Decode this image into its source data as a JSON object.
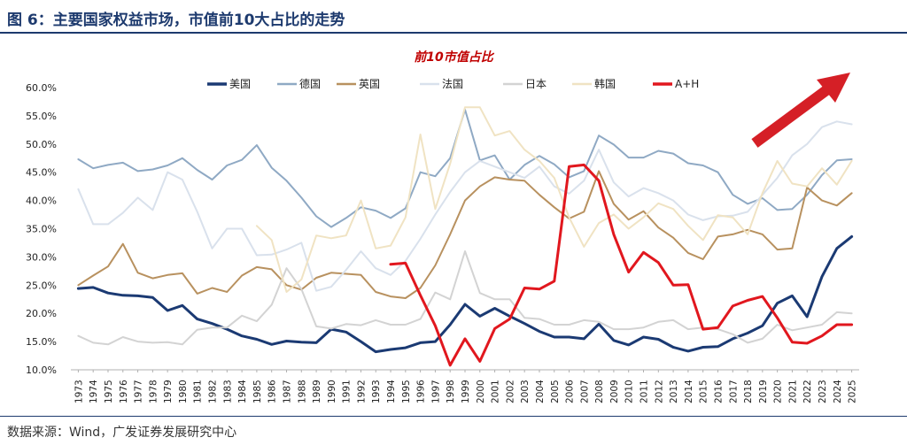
{
  "figure": {
    "title": "图 6：主要国家权益市场，市值前10大占比的走势",
    "source": "数据来源：Wind，广发证券发展研究中心"
  },
  "chart_data": {
    "type": "line",
    "title": "前10市值占比",
    "xlabel": "",
    "ylabel": "",
    "ylim": [
      0.1,
      0.6
    ],
    "yticks": [
      "10.0%",
      "15.0%",
      "20.0%",
      "25.0%",
      "30.0%",
      "35.0%",
      "40.0%",
      "45.0%",
      "50.0%",
      "55.0%",
      "60.0%"
    ],
    "grid": false,
    "legend_position": "top",
    "annotation": "red upward arrow (trend rising)",
    "x": [
      1973,
      1974,
      1975,
      1976,
      1977,
      1978,
      1979,
      1980,
      1981,
      1982,
      1983,
      1984,
      1985,
      1986,
      1987,
      1988,
      1989,
      1990,
      1991,
      1992,
      1993,
      1994,
      1995,
      1996,
      1997,
      1998,
      1999,
      2000,
      2001,
      2002,
      2003,
      2004,
      2005,
      2006,
      2007,
      2008,
      2009,
      2010,
      2011,
      2012,
      2013,
      2014,
      2015,
      2016,
      2017,
      2018,
      2019,
      2020,
      2021,
      2022,
      2023,
      2024,
      2025
    ],
    "series": [
      {
        "name": "美国",
        "color": "#1b3a73",
        "width": 3,
        "values": [
          0.244,
          0.246,
          0.236,
          0.232,
          0.231,
          0.228,
          0.205,
          0.214,
          0.19,
          0.182,
          0.172,
          0.16,
          0.154,
          0.145,
          0.151,
          0.149,
          0.148,
          0.172,
          0.167,
          0.15,
          0.132,
          0.136,
          0.139,
          0.148,
          0.15,
          0.18,
          0.216,
          0.195,
          0.209,
          0.195,
          0.182,
          0.168,
          0.158,
          0.158,
          0.155,
          0.181,
          0.152,
          0.144,
          0.158,
          0.154,
          0.14,
          0.133,
          0.14,
          0.141,
          0.155,
          0.165,
          0.178,
          0.218,
          0.231,
          0.194,
          0.265,
          0.315,
          0.336
        ]
      },
      {
        "name": "德国",
        "color": "#8fa9c4",
        "width": 2,
        "values": [
          0.473,
          0.457,
          0.463,
          0.467,
          0.452,
          0.455,
          0.462,
          0.475,
          0.454,
          0.437,
          0.462,
          0.472,
          0.498,
          0.458,
          0.435,
          0.405,
          0.372,
          0.353,
          0.369,
          0.388,
          0.382,
          0.369,
          0.386,
          0.45,
          0.443,
          0.475,
          0.561,
          0.471,
          0.48,
          0.437,
          0.463,
          0.479,
          0.464,
          0.441,
          0.452,
          0.515,
          0.499,
          0.476,
          0.476,
          0.488,
          0.483,
          0.466,
          0.462,
          0.45,
          0.41,
          0.394,
          0.404,
          0.383,
          0.385,
          0.41,
          0.445,
          0.471,
          0.473
        ]
      },
      {
        "name": "英国",
        "color": "#b8915f",
        "width": 2,
        "values": [
          0.25,
          0.267,
          0.283,
          0.323,
          0.272,
          0.262,
          0.268,
          0.271,
          0.235,
          0.245,
          0.238,
          0.267,
          0.282,
          0.278,
          0.25,
          0.242,
          0.263,
          0.272,
          0.27,
          0.268,
          0.238,
          0.23,
          0.227,
          0.245,
          0.285,
          0.34,
          0.4,
          0.425,
          0.441,
          0.437,
          0.435,
          0.41,
          0.388,
          0.368,
          0.38,
          0.452,
          0.394,
          0.366,
          0.381,
          0.352,
          0.334,
          0.307,
          0.296,
          0.336,
          0.34,
          0.348,
          0.34,
          0.313,
          0.315,
          0.423,
          0.4,
          0.391,
          0.413
        ]
      },
      {
        "name": "法国",
        "color": "#d9e1ec",
        "width": 2,
        "values": [
          0.42,
          0.358,
          0.358,
          0.378,
          0.405,
          0.383,
          0.45,
          0.437,
          0.38,
          0.315,
          0.35,
          0.35,
          0.303,
          0.304,
          0.313,
          0.325,
          0.24,
          0.247,
          0.277,
          0.31,
          0.28,
          0.268,
          0.293,
          0.332,
          0.375,
          0.415,
          0.45,
          0.47,
          0.46,
          0.45,
          0.44,
          0.46,
          0.425,
          0.412,
          0.435,
          0.49,
          0.432,
          0.407,
          0.422,
          0.413,
          0.4,
          0.375,
          0.365,
          0.372,
          0.373,
          0.38,
          0.41,
          0.44,
          0.48,
          0.5,
          0.53,
          0.54,
          0.535
        ]
      },
      {
        "name": "日本",
        "color": "#d3d3d3",
        "width": 2,
        "values": [
          0.16,
          0.148,
          0.145,
          0.158,
          0.15,
          0.148,
          0.149,
          0.145,
          0.171,
          0.175,
          0.175,
          0.196,
          0.186,
          0.215,
          0.28,
          0.243,
          0.177,
          0.173,
          0.181,
          0.179,
          0.188,
          0.18,
          0.18,
          0.19,
          0.237,
          0.225,
          0.31,
          0.236,
          0.225,
          0.225,
          0.192,
          0.19,
          0.18,
          0.18,
          0.188,
          0.185,
          0.172,
          0.172,
          0.175,
          0.185,
          0.188,
          0.172,
          0.175,
          0.172,
          0.163,
          0.148,
          0.155,
          0.18,
          0.17,
          0.175,
          0.18,
          0.202,
          0.2
        ]
      },
      {
        "name": "韩国",
        "color": "#f0e3c3",
        "width": 2,
        "values": [
          null,
          null,
          null,
          null,
          null,
          null,
          null,
          null,
          null,
          null,
          null,
          null,
          0.355,
          0.33,
          0.238,
          0.26,
          0.338,
          0.333,
          0.338,
          0.4,
          0.315,
          0.32,
          0.37,
          0.517,
          0.385,
          0.465,
          0.565,
          0.565,
          0.515,
          0.523,
          0.49,
          0.47,
          0.44,
          0.37,
          0.318,
          0.36,
          0.375,
          0.35,
          0.37,
          0.395,
          0.385,
          0.355,
          0.33,
          0.374,
          0.37,
          0.34,
          0.413,
          0.47,
          0.43,
          0.425,
          0.457,
          0.428,
          0.47
        ]
      },
      {
        "name": "A+H",
        "color": "#e1171e",
        "width": 3,
        "values": [
          null,
          null,
          null,
          null,
          null,
          null,
          null,
          null,
          null,
          null,
          null,
          null,
          null,
          null,
          null,
          null,
          null,
          null,
          null,
          null,
          null,
          0.287,
          0.289,
          0.232,
          0.178,
          0.108,
          0.155,
          0.115,
          0.173,
          0.19,
          0.245,
          0.243,
          0.257,
          0.46,
          0.463,
          0.435,
          0.34,
          0.273,
          0.308,
          0.29,
          0.25,
          0.251,
          0.172,
          0.175,
          0.213,
          0.223,
          0.23,
          0.192,
          0.149,
          0.147,
          0.16,
          0.18,
          0.18
        ]
      }
    ]
  }
}
